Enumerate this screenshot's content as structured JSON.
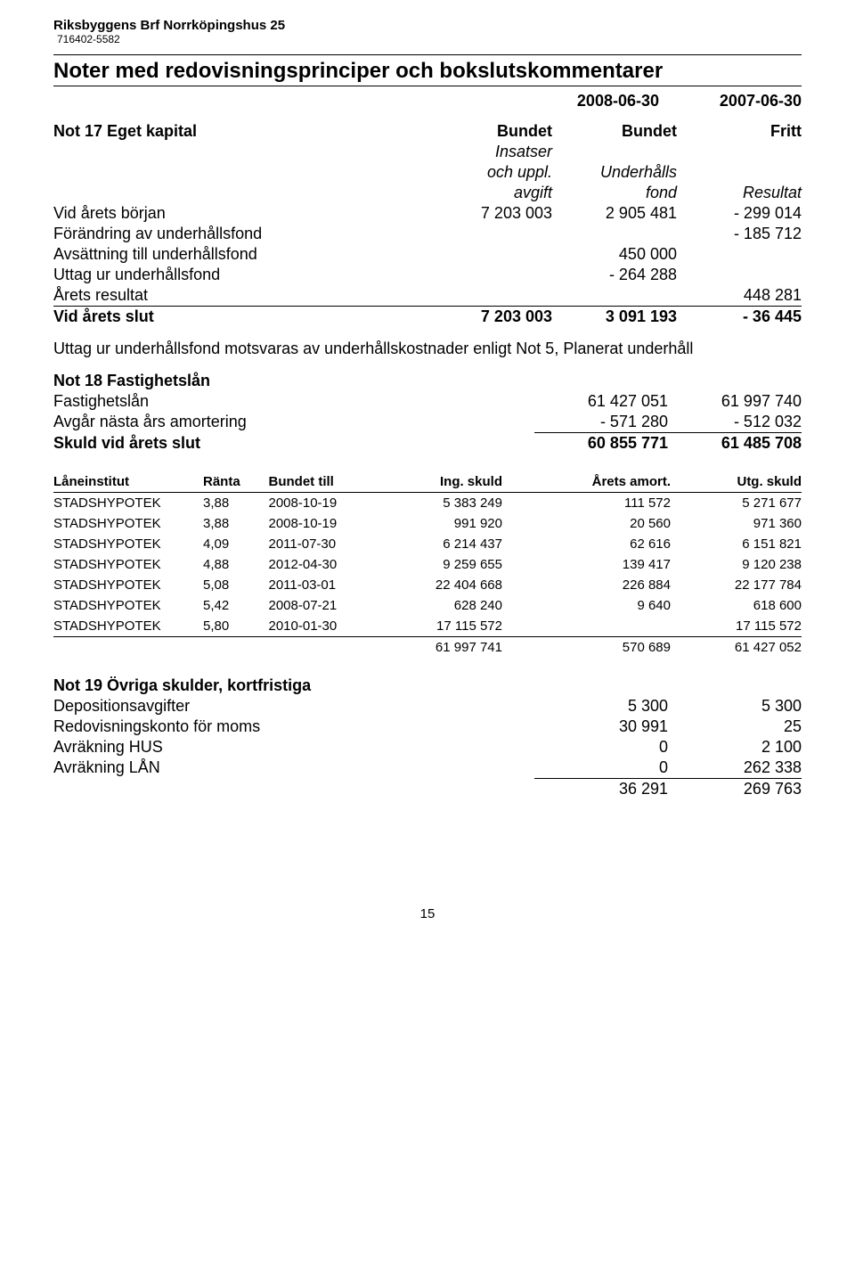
{
  "header": {
    "org_name": "Riksbyggens Brf Norrköpingshus 25",
    "org_number": "716402-5582"
  },
  "title": "Noter med redovisningsprinciper och bokslutskommentarer",
  "years": {
    "current": "2008-06-30",
    "prior": "2007-06-30"
  },
  "not17": {
    "heading": "Not 17  Eget kapital",
    "col1": "Bundet",
    "col2": "Bundet",
    "col3": "Fritt",
    "sub1a": "Insatser",
    "sub1b": "och uppl.",
    "sub1c": "avgift",
    "sub2a": "Underhålls",
    "sub2b": "fond",
    "sub3": "Resultat",
    "rows": [
      {
        "label": "Vid årets början",
        "c1": "7 203 003",
        "c2": "2 905 481",
        "c3": "- 299 014"
      },
      {
        "label": "Förändring av underhållsfond",
        "c1": "",
        "c2": "",
        "c3": "- 185 712"
      },
      {
        "label": "Avsättning till underhållsfond",
        "c1": "",
        "c2": "450 000",
        "c3": ""
      },
      {
        "label": "Uttag ur underhållsfond",
        "c1": "",
        "c2": "- 264 288",
        "c3": ""
      },
      {
        "label": "Årets resultat",
        "c1": "",
        "c2": "",
        "c3": "448 281"
      }
    ],
    "end_label": "Vid årets slut",
    "end_c1": "7 203 003",
    "end_c2": "3 091 193",
    "end_c3": "- 36 445"
  },
  "note_text": "Uttag ur underhållsfond motsvaras av underhållskostnader enligt Not 5, Planerat underhåll",
  "not18": {
    "heading": "Not 18  Fastighetslån",
    "rows": [
      {
        "label": "Fastighetslån",
        "a": "61 427 051",
        "b": "61 997 740"
      },
      {
        "label": "Avgår nästa års amortering",
        "a": "- 571 280",
        "b": "- 512 032"
      }
    ],
    "end_label": "Skuld vid årets slut",
    "end_a": "60 855 771",
    "end_b": "61 485 708"
  },
  "loans": {
    "headers": {
      "inst": "Låneinstitut",
      "rate": "Ränta",
      "date": "Bundet till",
      "ing": "Ing. skuld",
      "amort": "Årets amort.",
      "utg": "Utg. skuld"
    },
    "rows": [
      {
        "inst": "STADSHYPOTEK",
        "rate": "3,88",
        "date": "2008-10-19",
        "ing": "5 383 249",
        "amort": "111 572",
        "utg": "5 271 677"
      },
      {
        "inst": "STADSHYPOTEK",
        "rate": "3,88",
        "date": "2008-10-19",
        "ing": "991 920",
        "amort": "20 560",
        "utg": "971 360"
      },
      {
        "inst": "STADSHYPOTEK",
        "rate": "4,09",
        "date": "2011-07-30",
        "ing": "6 214 437",
        "amort": "62 616",
        "utg": "6 151 821"
      },
      {
        "inst": "STADSHYPOTEK",
        "rate": "4,88",
        "date": "2012-04-30",
        "ing": "9 259 655",
        "amort": "139 417",
        "utg": "9 120 238"
      },
      {
        "inst": "STADSHYPOTEK",
        "rate": "5,08",
        "date": "2011-03-01",
        "ing": "22 404 668",
        "amort": "226 884",
        "utg": "22 177 784"
      },
      {
        "inst": "STADSHYPOTEK",
        "rate": "5,42",
        "date": "2008-07-21",
        "ing": "628 240",
        "amort": "9 640",
        "utg": "618 600"
      },
      {
        "inst": "STADSHYPOTEK",
        "rate": "5,80",
        "date": "2010-01-30",
        "ing": "17 115 572",
        "amort": "",
        "utg": "17 115 572"
      }
    ],
    "total": {
      "ing": "61 997 741",
      "amort": "570 689",
      "utg": "61 427 052"
    }
  },
  "not19": {
    "heading": "Not 19  Övriga skulder, kortfristiga",
    "rows": [
      {
        "label": "Depositionsavgifter",
        "a": "5 300",
        "b": "5 300"
      },
      {
        "label": "Redovisningskonto för moms",
        "a": "30 991",
        "b": "25"
      },
      {
        "label": "Avräkning HUS",
        "a": "0",
        "b": "2 100"
      },
      {
        "label": "Avräkning LÅN",
        "a": "0",
        "b": "262 338"
      }
    ],
    "total": {
      "a": "36 291",
      "b": "269 763"
    }
  },
  "page_number": "15"
}
